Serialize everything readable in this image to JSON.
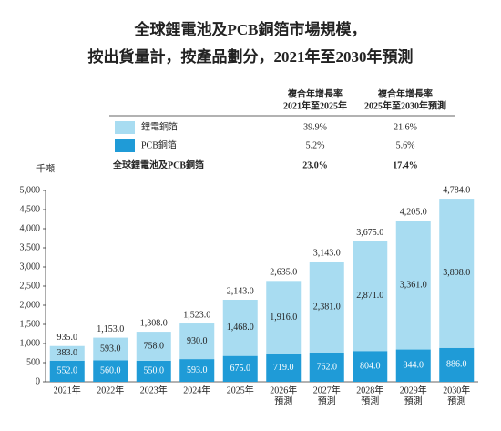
{
  "chart_data": {
    "type": "stacked_bar",
    "title": [
      "全球鋰電池及PCB銅箔市場規模，",
      "按出貨量計，按產品劃分，2021年至2030年預測"
    ],
    "y_label": "千噸",
    "cagr_headers": [
      [
        "複合年增長率",
        "2021年至2025年"
      ],
      [
        "複合年增長率",
        "2025年至2030年預測"
      ]
    ],
    "categories": [
      [
        "2021年"
      ],
      [
        "2022年"
      ],
      [
        "2023年"
      ],
      [
        "2024年"
      ],
      [
        "2025年"
      ],
      [
        "2026年",
        "預測"
      ],
      [
        "2027年",
        "預測"
      ],
      [
        "2028年",
        "預測"
      ],
      [
        "2029年",
        "預測"
      ],
      [
        "2030年",
        "預測"
      ]
    ],
    "series": [
      {
        "name": "PCB銅箔",
        "color": "#1f9bd7",
        "label_color": "#ffffff",
        "values": [
          552,
          560,
          550,
          593,
          675,
          719,
          762,
          804,
          844,
          886
        ],
        "value_labels": [
          "552.0",
          "560.0",
          "550.0",
          "593.0",
          "675.0",
          "719.0",
          "762.0",
          "804.0",
          "844.0",
          "886.0"
        ],
        "cagr": [
          "5.2%",
          "5.6%"
        ]
      },
      {
        "name": "鋰電銅箔",
        "color": "#a8dcf1",
        "label_color": "#222222",
        "values": [
          383,
          593,
          758,
          930,
          1468,
          1916,
          2381,
          2871,
          3361,
          3898
        ],
        "value_labels": [
          "383.0",
          "593.0",
          "758.0",
          "930.0",
          "1,468.0",
          "1,916.0",
          "2,381.0",
          "2,871.0",
          "3,361.0",
          "3,898.0"
        ],
        "cagr": [
          "39.9%",
          "21.6%"
        ]
      }
    ],
    "totals": {
      "name": "全球鋰電池及PCB銅箔",
      "values": [
        935,
        1153,
        1308,
        1523,
        2143,
        2635,
        3143,
        3675,
        4205,
        4784
      ],
      "value_labels": [
        "935.0",
        "1,153.0",
        "1,308.0",
        "1,523.0",
        "2,143.0",
        "2,635.0",
        "3,143.0",
        "3,675.0",
        "4,205.0",
        "4,784.0"
      ],
      "cagr": [
        "23.0%",
        "17.4%"
      ]
    },
    "ylim": [
      0,
      5000
    ],
    "yticks": [
      0,
      500,
      {
        "value": 1000,
        "label": "1,000"
      },
      {
        "value": 1500,
        "label": "1,500"
      },
      {
        "value": 2000,
        "label": "2,000"
      },
      {
        "value": 2500,
        "label": "2,500"
      },
      {
        "value": 3000,
        "label": "3,000"
      },
      {
        "value": 3500,
        "label": "3,500"
      },
      {
        "value": 4000,
        "label": "4,000"
      },
      {
        "value": 4500,
        "label": "4,500"
      },
      {
        "value": 5000,
        "label": "5,000"
      }
    ]
  }
}
